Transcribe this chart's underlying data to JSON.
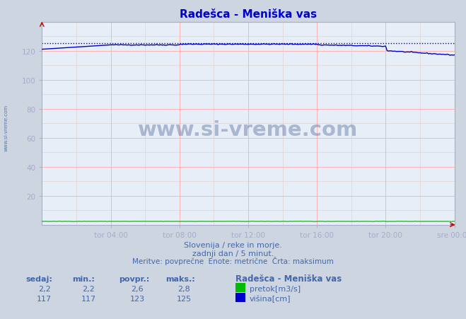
{
  "title": "Radešca - Meniška vas",
  "bg_color": "#ccd5e0",
  "plot_bg_color": "#e8eef8",
  "xlim": [
    0,
    288
  ],
  "ylim": [
    0,
    140
  ],
  "yticks": [
    20,
    40,
    60,
    80,
    100,
    120
  ],
  "xtick_labels": [
    "tor 04:00",
    "tor 08:00",
    "tor 12:00",
    "tor 16:00",
    "tor 20:00",
    "sre 00:00"
  ],
  "xtick_positions": [
    48,
    96,
    144,
    192,
    240,
    288
  ],
  "visina_color": "#0000cc",
  "pretok_color": "#00aa00",
  "max_dotted_color": "#0000aa",
  "arrow_color": "#cc0000",
  "subtitle1": "Slovenija / reke in morje.",
  "subtitle2": "zadnji dan / 5 minut.",
  "subtitle3": "Meritve: povprečne  Enote: metrične  Črta: maksimum",
  "footer_color": "#4466aa",
  "title_color": "#0000cc",
  "watermark": "www.si-vreme.com",
  "side_watermark": "www.si-vreme.com",
  "table_headers": [
    "sedaj:",
    "min.:",
    "povpr.:",
    "maks.:"
  ],
  "pretok_values": [
    "2,2",
    "2,2",
    "2,6",
    "2,8"
  ],
  "visina_values": [
    "117",
    "117",
    "123",
    "125"
  ],
  "legend_title": "Radešca - Meniška vas",
  "legend_pretok": "pretok[m3/s]",
  "legend_visina": "višina[cm]",
  "max_visina": 125,
  "major_grid_color": "#ffaaaa",
  "minor_grid_color": "#ddcccc",
  "spine_color": "#aaaacc"
}
